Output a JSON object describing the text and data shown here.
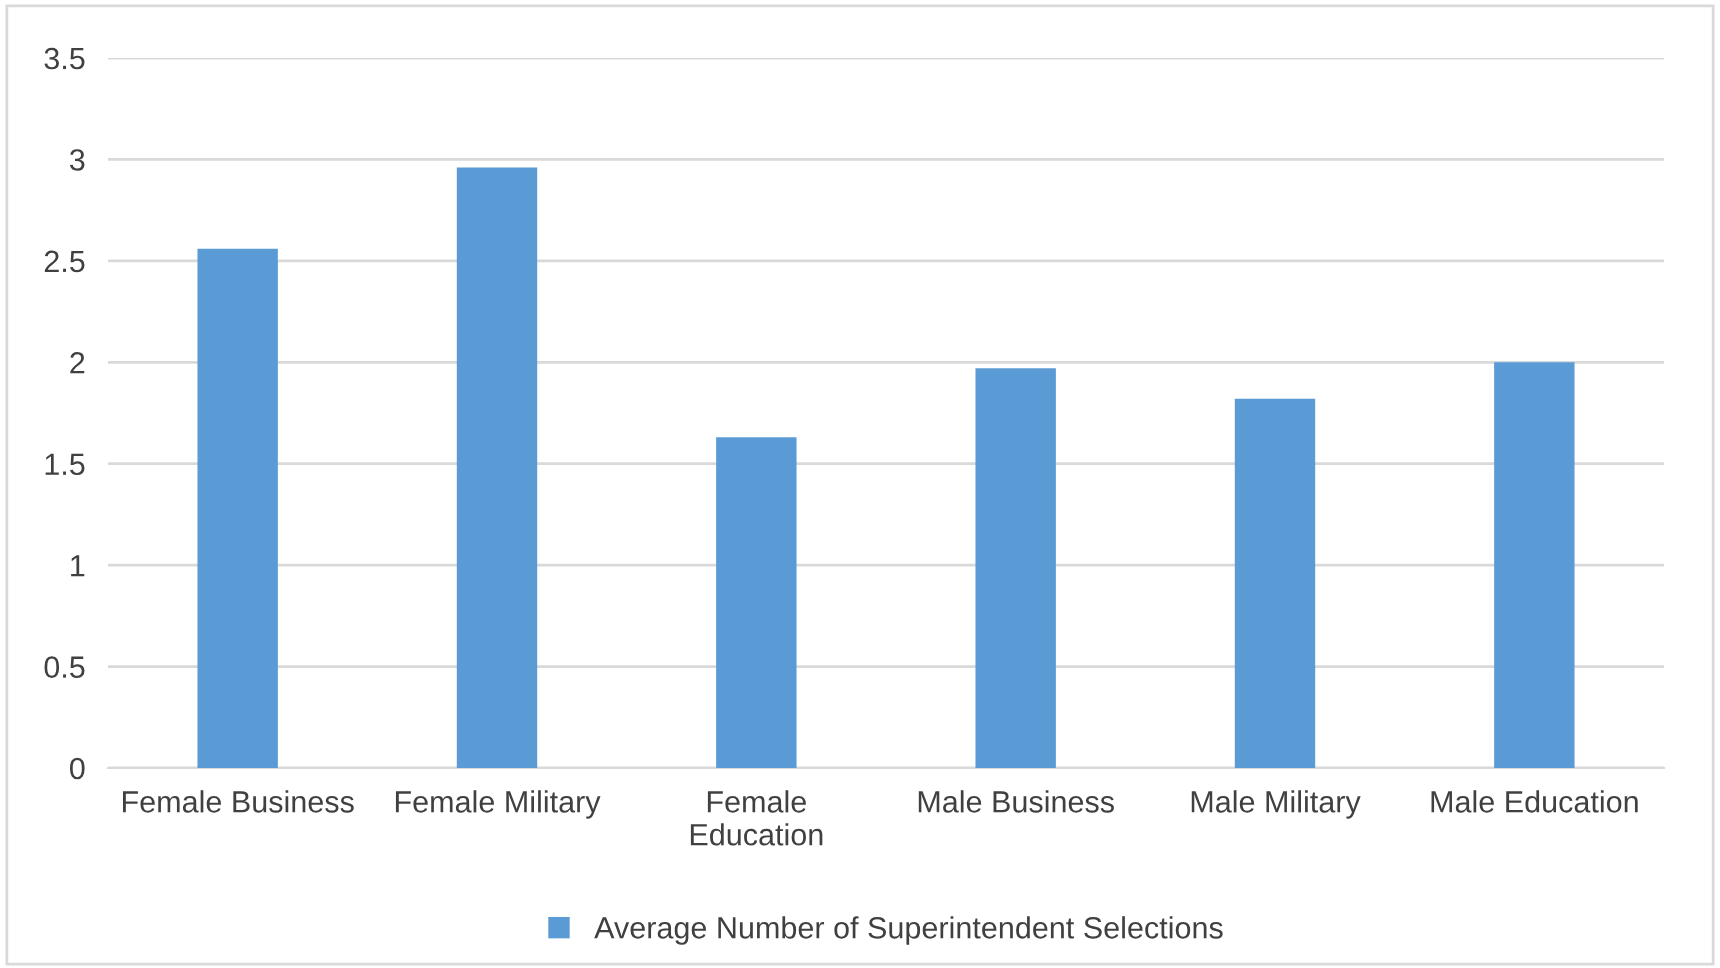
{
  "chart_data": {
    "type": "bar",
    "categories": [
      "Female Business",
      "Female Military",
      "Female\nEducation",
      "Male Business",
      "Male Military",
      "Male Education"
    ],
    "series": [
      {
        "name": "Average Number of Superintendent Selections",
        "color": "#5b9bd5",
        "values": [
          2.56,
          2.96,
          1.63,
          1.97,
          1.82,
          2.0
        ]
      }
    ],
    "ylim": [
      0,
      3.5
    ],
    "yticks": [
      0,
      0.5,
      1,
      1.5,
      2,
      2.5,
      3,
      3.5
    ],
    "grid": "y",
    "legend": "bottom"
  }
}
